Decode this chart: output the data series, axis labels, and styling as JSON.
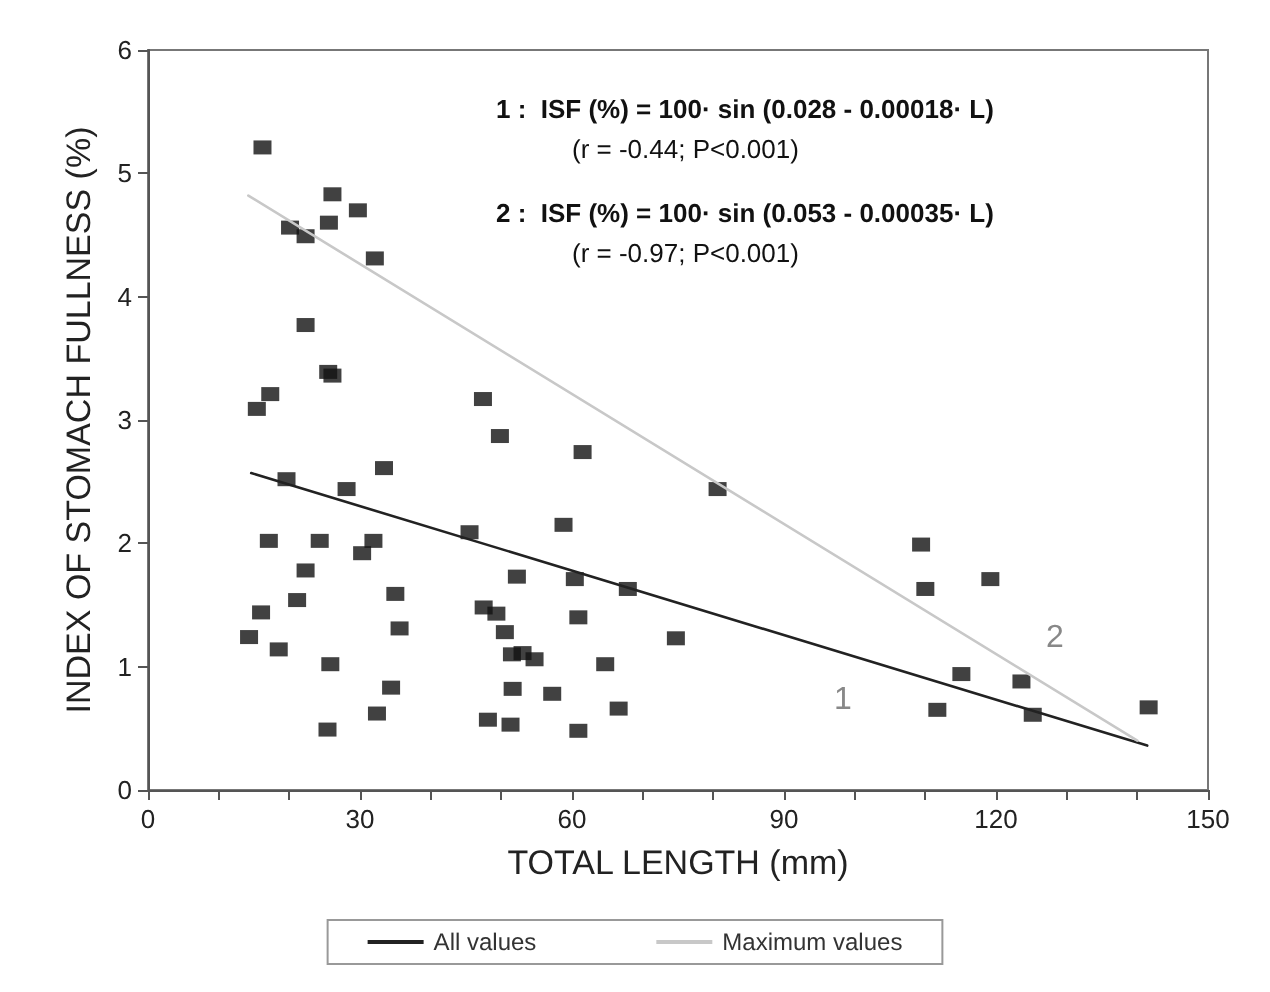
{
  "chart_data": {
    "type": "scatter",
    "xlabel": "TOTAL LENGTH (mm)",
    "ylabel": "INDEX OF STOMACH FULLNESS (%)",
    "xlim": [
      0,
      150
    ],
    "ylim": [
      0,
      6
    ],
    "xticks": [
      0,
      {
        "value": 10,
        "label": null
      },
      {
        "value": 20,
        "label": null
      },
      30,
      {
        "value": 40,
        "label": null
      },
      {
        "value": 50,
        "label": null
      },
      60,
      {
        "value": 70,
        "label": null
      },
      {
        "value": 80,
        "label": null
      },
      90,
      {
        "value": 100,
        "label": null
      },
      {
        "value": 110,
        "label": null
      },
      120,
      {
        "value": 130,
        "label": null
      },
      {
        "value": 140,
        "label": null
      },
      150
    ],
    "yticks": [
      0,
      1,
      2,
      3,
      4,
      5,
      6
    ],
    "grid": false,
    "legend": "bottom",
    "marker": "square",
    "series": [
      {
        "color": "#111111",
        "x": [
          16.2,
          26.1,
          29.7,
          20.1,
          25.6,
          22.3,
          32.1,
          22.3,
          25.5,
          26.1,
          17.3,
          15.4,
          47.4,
          49.8,
          33.4,
          19.6,
          28.1,
          45.5,
          17.1,
          24.3,
          31.9,
          30.3,
          52.2,
          22.3,
          35.0,
          21.1,
          16.0,
          47.5,
          49.3,
          14.3,
          35.6,
          50.5,
          18.5,
          51.5,
          53.0,
          54.7,
          25.8,
          34.4,
          51.6,
          32.4,
          48.1,
          51.3,
          25.4,
          61.5,
          80.6,
          58.8,
          60.4,
          67.9,
          60.9,
          74.7,
          64.7,
          57.2,
          66.6,
          60.9,
          109.4,
          110.0,
          119.2,
          115.1,
          123.6,
          111.7,
          125.2,
          141.6
        ],
        "values": [
          5.21,
          4.83,
          4.7,
          4.56,
          4.6,
          4.49,
          4.31,
          3.77,
          3.39,
          3.36,
          3.21,
          3.09,
          3.17,
          2.87,
          2.61,
          2.52,
          2.44,
          2.09,
          2.02,
          2.02,
          2.02,
          1.92,
          1.73,
          1.78,
          1.59,
          1.54,
          1.44,
          1.48,
          1.43,
          1.24,
          1.31,
          1.28,
          1.14,
          1.1,
          1.11,
          1.06,
          1.02,
          0.83,
          0.82,
          0.62,
          0.57,
          0.53,
          0.49,
          2.74,
          2.44,
          2.15,
          1.71,
          1.63,
          1.4,
          1.23,
          1.02,
          0.78,
          0.66,
          0.48,
          1.99,
          1.63,
          1.71,
          0.94,
          0.88,
          0.65,
          0.61,
          0.67
        ]
      },
      {
        "type": "line",
        "name": "All values",
        "color": "#222222",
        "marker": "none",
        "line_style": "solid",
        "x": [
          14.6,
          141.4
        ],
        "values": [
          2.57,
          0.36
        ]
      },
      {
        "type": "line",
        "name": "Maximum values",
        "color": "#c8c8c8",
        "marker": "none",
        "line_style": "solid",
        "x": [
          14.2,
          140
        ],
        "values": [
          4.82,
          0.4
        ]
      }
    ],
    "annotations": [
      "1 :  ISF (%) = 100· sin (0.028 - 0.00018· L)",
      "(r = -0.44; P<0.001)",
      "2 :  ISF (%) = 100· sin (0.053 - 0.00035· L)",
      "(r = -0.97; P<0.001)",
      "1",
      "2"
    ]
  }
}
